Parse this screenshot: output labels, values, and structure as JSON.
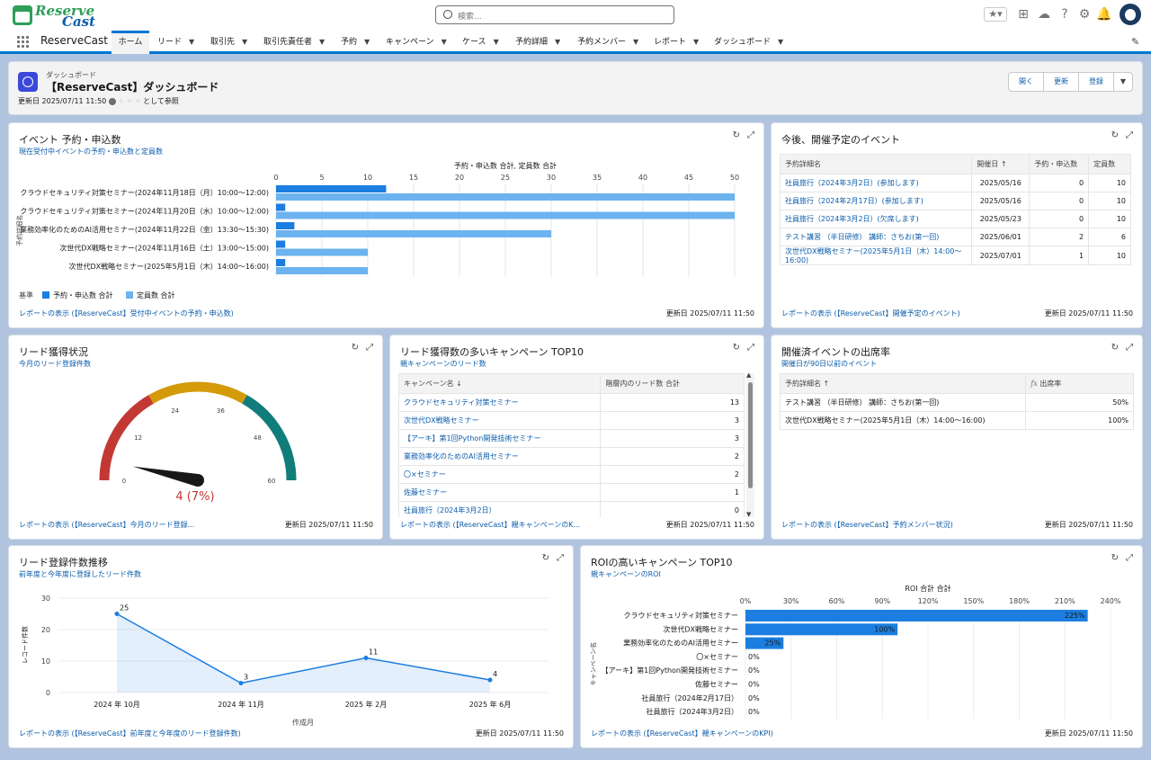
{
  "header": {
    "search_placeholder": "検索..."
  },
  "nav": {
    "app_name": "ReserveCast",
    "tabs": [
      "ホーム",
      "リード",
      "取引先",
      "取引先責任者",
      "予約",
      "キャンペーン",
      "ケース",
      "予約詳細",
      "予約メンバー",
      "レポート",
      "ダッシュボード"
    ]
  },
  "dashboard": {
    "kind": "ダッシュボード",
    "title": "【ReserveCast】ダッシュボード",
    "updated": "更新日 2025/07/11 11:50",
    "viewing_as": "として参照",
    "buttons": {
      "open": "開く",
      "refresh": "更新",
      "subscribe": "登録"
    }
  },
  "card_events": {
    "title": "イベント 予約・申込数",
    "subtitle": "現在受付中イベントの予約・申込数と定員数",
    "footer": "レポートの表示 (【ReserveCast】受付中イベントの予約・申込数)",
    "updated": "更新日 2025/07/11 11:50",
    "legend_label": "基準",
    "chart_data": {
      "type": "bar",
      "orientation": "horizontal",
      "title": "予約・申込数 合計, 定員数 合計",
      "ylabel": "予約詳細名",
      "xlim": [
        0,
        50
      ],
      "xticks": [
        0,
        5,
        10,
        15,
        20,
        25,
        30,
        35,
        40,
        45,
        50
      ],
      "categories": [
        "クラウドセキュリティ対策セミナー(2024年11月18日（月）10:00～12:00)",
        "クラウドセキュリティ対策セミナー(2024年11月20日（水）10:00～12:00)",
        "業務効率化のためのAI活用セミナー(2024年11月22日（金）13:30～15:30)",
        "次世代DX戦略セミナー(2024年11月16日（土）13:00～15:00)",
        "次世代DX戦略セミナー(2025年5月1日（木）14:00～16:00)"
      ],
      "series": [
        {
          "name": "予約・申込数 合計",
          "color": "#1b7ee0",
          "values": [
            12,
            1,
            2,
            1,
            1
          ]
        },
        {
          "name": "定員数 合計",
          "color": "#6cb3ef",
          "values": [
            50,
            50,
            30,
            10,
            10
          ]
        }
      ],
      "legend": "bottom-left"
    }
  },
  "card_upcoming": {
    "title": "今後、開催予定のイベント",
    "footer": "レポートの表示 (【ReserveCast】開催予定のイベント)",
    "updated": "更新日 2025/07/11 11:50",
    "columns": [
      "予約詳細名",
      "開催日 ↑",
      "予約・申込数",
      "定員数"
    ],
    "rows": [
      [
        "社員旅行（2024年3月2日）(参加します)",
        "2025/05/16",
        "0",
        "10"
      ],
      [
        "社員旅行（2024年2月17日）(参加します)",
        "2025/05/16",
        "0",
        "10"
      ],
      [
        "社員旅行（2024年3月2日）(欠席します)",
        "2025/05/23",
        "0",
        "10"
      ],
      [
        "テスト講習 （半日研修） 講師：さちお(第一回)",
        "2025/06/01",
        "2",
        "6"
      ],
      [
        "次世代DX戦略セミナー(2025年5月1日（木）14:00～16:00)",
        "2025/07/01",
        "1",
        "10"
      ]
    ]
  },
  "card_leads": {
    "title": "リード獲得状況",
    "subtitle": "今月のリード登録件数",
    "footer": "レポートの表示 (【ReserveCast】今月のリード登録...",
    "updated": "更新日 2025/07/11 11:50",
    "gauge_label": "4 (7%)",
    "chart_data": {
      "type": "gauge",
      "value": 4,
      "min": 0,
      "max": 60,
      "ticks": [
        0,
        12,
        24,
        36,
        48,
        60
      ],
      "bands": [
        {
          "from": 0,
          "to": 20,
          "color": "#c23934"
        },
        {
          "from": 20,
          "to": 40,
          "color": "#d49a0a"
        },
        {
          "from": 40,
          "to": 60,
          "color": "#107d7a"
        }
      ]
    }
  },
  "card_top10": {
    "title": "リード獲得数の多いキャンペーン TOP10",
    "subtitle": "親キャンペーンのリード数",
    "footer": "レポートの表示 (【ReserveCast】親キャンペーンのK...",
    "updated": "更新日 2025/07/11 11:50",
    "columns": [
      "キャンペーン名 ↓",
      "階層内のリード数 合計"
    ],
    "rows": [
      [
        "クラウドセキュリティ対策セミナー",
        "13"
      ],
      [
        "次世代DX戦略セミナー",
        "3"
      ],
      [
        "【アーキ】第1回Python開発技術セミナー",
        "3"
      ],
      [
        "業務効率化のためのAI活用セミナー",
        "2"
      ],
      [
        "〇×セミナー",
        "2"
      ],
      [
        "佐藤セミナー",
        "1"
      ],
      [
        "社員旅行（2024年3月2日）",
        "0"
      ]
    ]
  },
  "card_attendance": {
    "title": "開催済イベントの出席率",
    "subtitle": "開催日が90日以前のイベント",
    "footer": "レポートの表示 (【ReserveCast】予約メンバー状況)",
    "updated": "更新日 2025/07/11 11:50",
    "columns": [
      "予約詳細名 ↑",
      "出席率"
    ],
    "fx": "fx",
    "rows": [
      [
        "テスト講習 （半日研修） 講師：さちお(第一回)",
        "50%"
      ],
      [
        "次世代DX戦略セミナー(2025年5月1日（木）14:00～16:00)",
        "100%"
      ]
    ]
  },
  "card_trend": {
    "title": "リード登録件数推移",
    "subtitle": "前年度と今年度に登録したリード件数",
    "footer": "レポートの表示 (【ReserveCast】前年度と今年度のリード登録件数)",
    "updated": "更新日 2025/07/11 11:50",
    "chart_data": {
      "type": "area",
      "xlabel": "作成月",
      "ylabel": "レコード件数",
      "ylim": [
        0,
        30
      ],
      "yticks": [
        0,
        10,
        20,
        30
      ],
      "categories": [
        "2024 年 10月",
        "2024 年 11月",
        "2025 年 2月",
        "2025 年 6月"
      ],
      "values": [
        25,
        3,
        11,
        4
      ],
      "color": "#1b7ee0"
    }
  },
  "card_roi": {
    "title": "ROIの高いキャンペーン TOP10",
    "subtitle": "親キャンペーンのROI",
    "footer": "レポートの表示 (【ReserveCast】親キャンペーンのKPI)",
    "updated": "更新日 2025/07/11 11:50",
    "chart_data": {
      "type": "bar",
      "orientation": "horizontal",
      "title": "ROI 合計 合計",
      "ylabel": "キャンペーン名",
      "xlim": [
        0,
        240
      ],
      "xticks": [
        "0%",
        "30%",
        "60%",
        "90%",
        "120%",
        "150%",
        "180%",
        "210%",
        "240%"
      ],
      "categories": [
        "クラウドセキュリティ対策セミナー",
        "次世代DX戦略セミナー",
        "業務効率化のためのAI活用セミナー",
        "〇×セミナー",
        "【アーキ】第1回Python開発技術セミナー",
        "佐藤セミナー",
        "社員旅行（2024年2月17日）",
        "社員旅行（2024年3月2日）"
      ],
      "values": [
        225,
        100,
        25,
        0,
        0,
        0,
        0,
        0
      ],
      "labels": [
        "225%",
        "100%",
        "25%",
        "0%",
        "0%",
        "0%",
        "0%",
        "0%"
      ],
      "color": "#1b7ee0"
    }
  }
}
